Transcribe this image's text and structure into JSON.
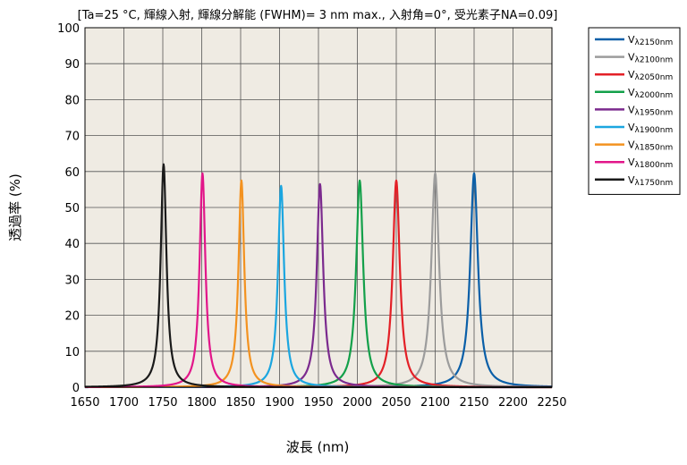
{
  "chart_data": {
    "type": "line",
    "title": "[Ta=25 °C, 輝線入射, 輝線分解能 (FWHM)= 3 nm max., 入射角=0°, 受光素子NA=0.09]",
    "xlabel": "波長 (nm)",
    "ylabel": "透過率 (%)",
    "xlim": [
      1650,
      2250
    ],
    "ylim": [
      0,
      100
    ],
    "xticks": [
      1650,
      1700,
      1750,
      1800,
      1850,
      1900,
      1950,
      2000,
      2050,
      2100,
      2150,
      2200,
      2250
    ],
    "yticks": [
      0,
      10,
      20,
      30,
      40,
      50,
      60,
      70,
      80,
      90,
      100
    ],
    "grid": true,
    "legend_position": "right",
    "background": "#efebe3",
    "series": [
      {
        "name": "Vλ2150nm",
        "name_main": "V",
        "name_sub": "λ2150nm",
        "center": 2150,
        "peak": 59.5,
        "fwhm": 12,
        "color": "#0a5fa8"
      },
      {
        "name": "Vλ2100nm",
        "name_main": "V",
        "name_sub": "λ2100nm",
        "center": 2100,
        "peak": 59.5,
        "fwhm": 12,
        "color": "#9c9c9c"
      },
      {
        "name": "Vλ2050nm",
        "name_main": "V",
        "name_sub": "λ2050nm",
        "center": 2050,
        "peak": 57.5,
        "fwhm": 11,
        "color": "#e32027"
      },
      {
        "name": "Vλ2000nm",
        "name_main": "V",
        "name_sub": "λ2000nm",
        "center": 2003,
        "peak": 57.5,
        "fwhm": 11,
        "color": "#13a04a"
      },
      {
        "name": "Vλ1950nm",
        "name_main": "V",
        "name_sub": "λ1950nm",
        "center": 1952,
        "peak": 56.5,
        "fwhm": 10,
        "color": "#7b2a8e"
      },
      {
        "name": "Vλ1900nm",
        "name_main": "V",
        "name_sub": "λ1900nm",
        "center": 1902,
        "peak": 56,
        "fwhm": 9.5,
        "color": "#1ba6e0"
      },
      {
        "name": "Vλ1850nm",
        "name_main": "V",
        "name_sub": "λ1850nm",
        "center": 1851,
        "peak": 57.5,
        "fwhm": 9,
        "color": "#f39220"
      },
      {
        "name": "Vλ1800nm",
        "name_main": "V",
        "name_sub": "λ1800nm",
        "center": 1801,
        "peak": 59.5,
        "fwhm": 9,
        "color": "#e2168a"
      },
      {
        "name": "Vλ1750nm",
        "name_main": "V",
        "name_sub": "λ1750nm",
        "center": 1751,
        "peak": 62,
        "fwhm": 9,
        "color": "#1a1a1a"
      }
    ]
  }
}
